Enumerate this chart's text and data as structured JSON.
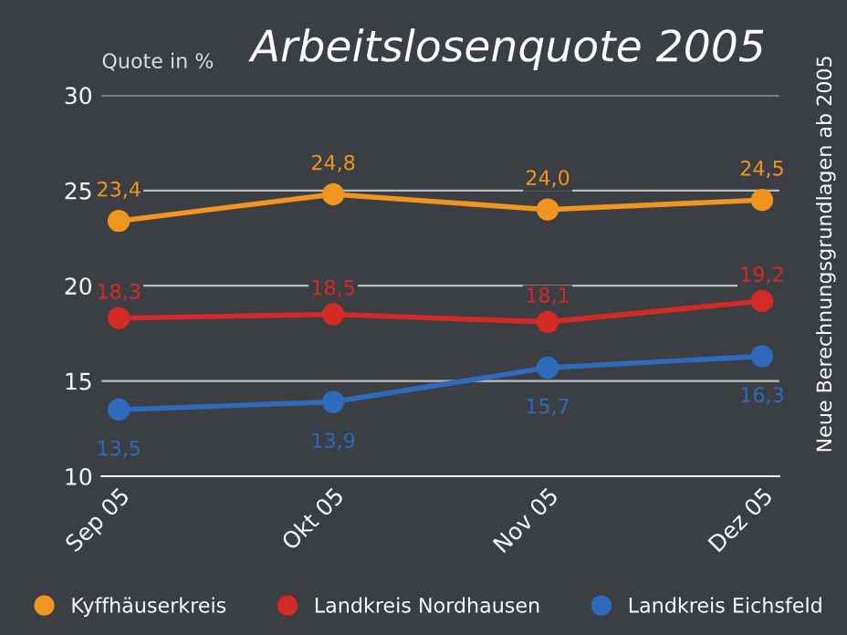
{
  "chart_data": {
    "type": "line",
    "title": "Arbeitslosenquote 2005",
    "ylabel": "Quote in %",
    "categories": [
      "Sep 05",
      "Okt 05",
      "Nov 05",
      "Dez 05"
    ],
    "series": [
      {
        "name": "Kyffhäuserkreis",
        "color": "#f0961e",
        "values": [
          23.4,
          24.8,
          24.0,
          24.5
        ],
        "value_labels": [
          "23,4",
          "24,8",
          "24,0",
          "24,5"
        ]
      },
      {
        "name": "Landkreis Nordhausen",
        "color": "#d42a26",
        "values": [
          18.3,
          18.5,
          18.1,
          19.2
        ],
        "value_labels": [
          "18,3",
          "18,5",
          "18,1",
          "19,2"
        ]
      },
      {
        "name": "Landkreis Eichsfeld",
        "color": "#2f6bbd",
        "values": [
          13.5,
          13.9,
          15.7,
          16.3
        ],
        "value_labels": [
          "13,5",
          "13,9",
          "15,7",
          "16,3"
        ]
      }
    ],
    "ylim": [
      10,
      30
    ],
    "yticks": [
      10,
      15,
      20,
      25,
      30
    ],
    "grid": "y",
    "legend": "bottom",
    "marker": "circle",
    "line_style": "solid",
    "annotations": [
      "Neue Berechnungsgrundlagen ab 2005"
    ]
  }
}
